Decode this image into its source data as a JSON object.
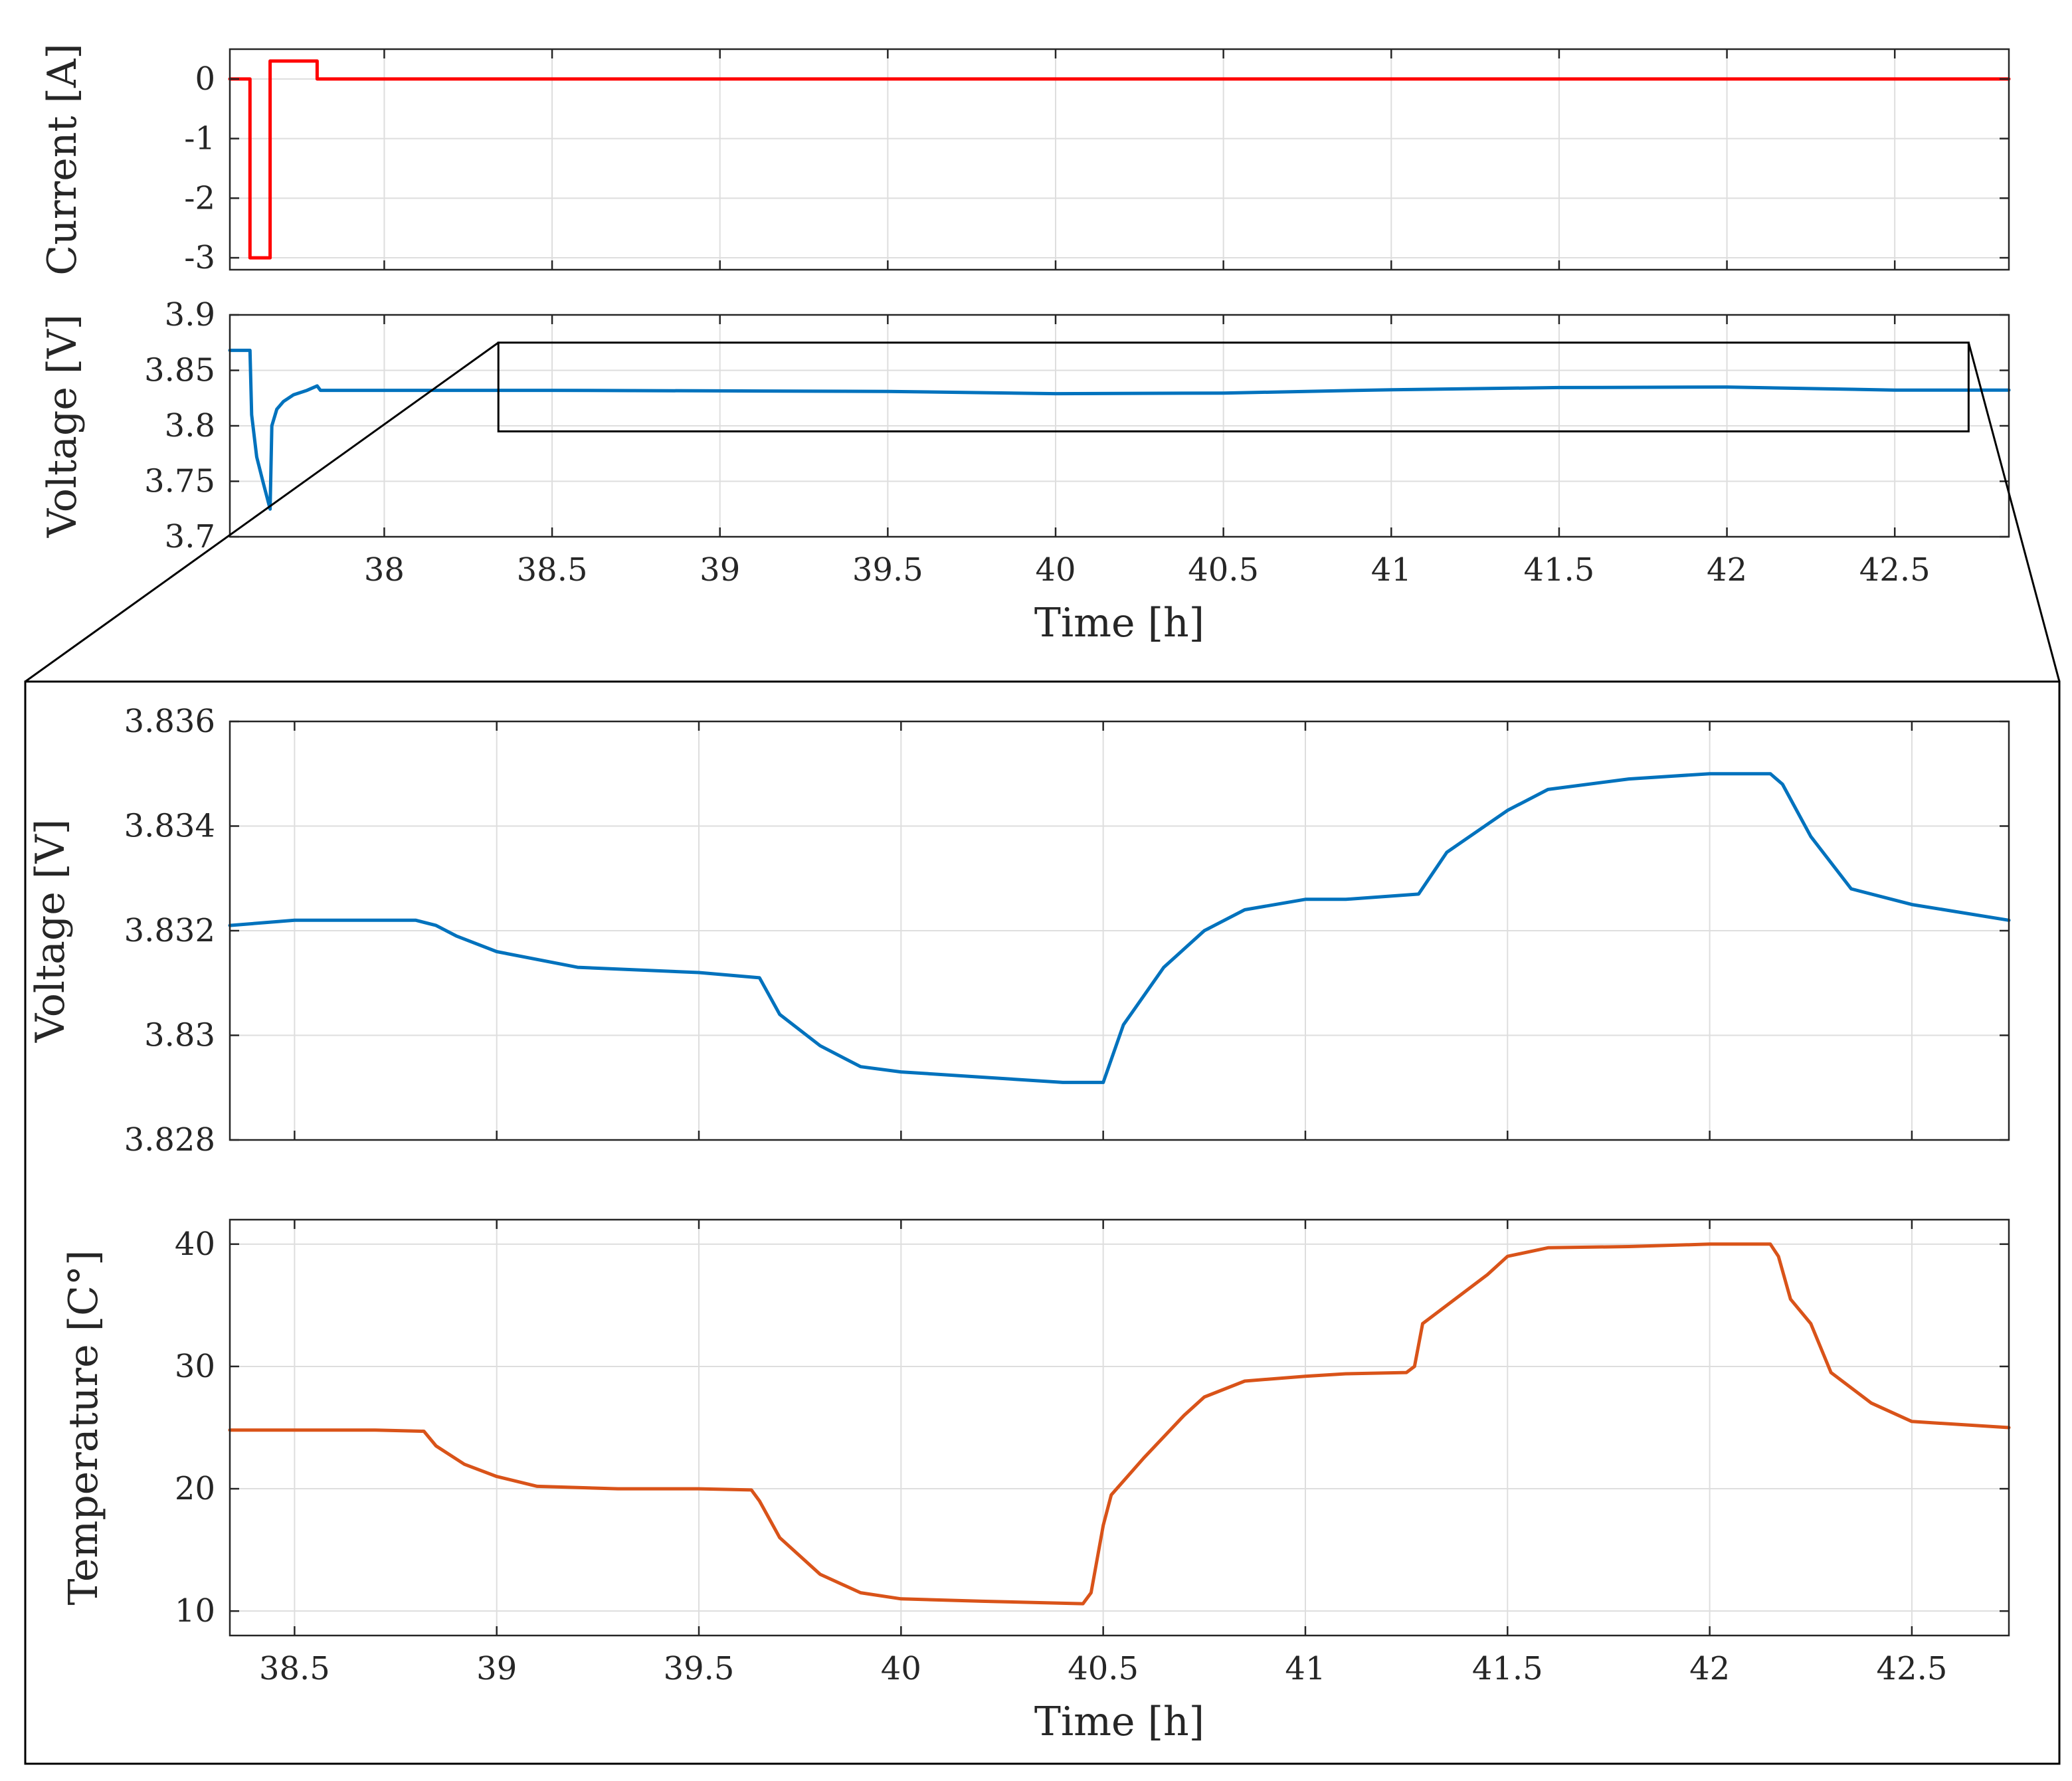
{
  "chart_data": [
    {
      "id": "current",
      "type": "line",
      "ylabel": "Current [A]",
      "xlabel": "",
      "xlim": [
        37.54,
        42.84
      ],
      "ylim": [
        -3.2,
        0.5
      ],
      "xticks": [
        38,
        38.5,
        39,
        39.5,
        40,
        40.5,
        41,
        41.5,
        42,
        42.5
      ],
      "xtick_labels": [],
      "yticks": [
        0,
        -1,
        -2,
        -3
      ],
      "ytick_labels": [
        "0",
        "-1",
        "-2",
        "-3"
      ],
      "grid": true,
      "series": [
        {
          "color": "#ff0000",
          "x": [
            37.54,
            37.6,
            37.6,
            37.66,
            37.66,
            37.8,
            37.8,
            42.84
          ],
          "y": [
            0,
            0,
            -3,
            -3,
            0.3,
            0.3,
            0,
            0
          ]
        }
      ]
    },
    {
      "id": "voltage_full",
      "type": "line",
      "ylabel": "Voltage [V]",
      "xlabel": "Time [h]",
      "xlim": [
        37.54,
        42.84
      ],
      "ylim": [
        3.7,
        3.9
      ],
      "xticks": [
        38,
        38.5,
        39,
        39.5,
        40,
        40.5,
        41,
        41.5,
        42,
        42.5
      ],
      "xtick_labels": [
        "38",
        "38.5",
        "39",
        "39.5",
        "40",
        "40.5",
        "41",
        "41.5",
        "42",
        "42.5"
      ],
      "yticks": [
        3.9,
        3.85,
        3.8,
        3.75,
        3.7
      ],
      "ytick_labels": [
        "3.9",
        "3.85",
        "3.8",
        "3.75",
        "3.7"
      ],
      "grid": true,
      "zoom_box": {
        "x": [
          38.34,
          42.72
        ],
        "y": [
          3.795,
          3.875
        ]
      },
      "series": [
        {
          "color": "#0072bd",
          "x": [
            37.54,
            37.6,
            37.605,
            37.62,
            37.64,
            37.66,
            37.665,
            37.68,
            37.7,
            37.73,
            37.77,
            37.8,
            37.81,
            38.0,
            38.5,
            39.0,
            39.5,
            40.0,
            40.5,
            41.0,
            41.5,
            42.0,
            42.5,
            42.84
          ],
          "y": [
            3.868,
            3.868,
            3.81,
            3.772,
            3.748,
            3.725,
            3.8,
            3.815,
            3.822,
            3.828,
            3.832,
            3.836,
            3.832,
            3.832,
            3.832,
            3.8315,
            3.831,
            3.829,
            3.8295,
            3.8325,
            3.8345,
            3.835,
            3.8322,
            3.8322
          ]
        }
      ]
    },
    {
      "id": "voltage_zoom",
      "type": "line",
      "ylabel": "Voltage [V]",
      "xlabel": "",
      "xlim": [
        38.34,
        42.74
      ],
      "ylim": [
        3.828,
        3.836
      ],
      "xticks": [
        38.5,
        39,
        39.5,
        40,
        40.5,
        41,
        41.5,
        42,
        42.5
      ],
      "xtick_labels": [],
      "yticks": [
        3.836,
        3.834,
        3.832,
        3.83,
        3.828
      ],
      "ytick_labels": [
        "3.836",
        "3.834",
        "3.832",
        "3.83",
        "3.828"
      ],
      "grid": true,
      "series": [
        {
          "color": "#0072bd",
          "x": [
            38.34,
            38.5,
            38.65,
            38.8,
            38.85,
            38.9,
            39.0,
            39.2,
            39.5,
            39.65,
            39.7,
            39.8,
            39.9,
            40.0,
            40.2,
            40.4,
            40.5,
            40.55,
            40.65,
            40.75,
            40.85,
            41.0,
            41.1,
            41.28,
            41.35,
            41.5,
            41.6,
            41.8,
            42.0,
            42.15,
            42.18,
            42.25,
            42.35,
            42.5,
            42.74
          ],
          "y": [
            3.8321,
            3.8322,
            3.8322,
            3.8322,
            3.8321,
            3.8319,
            3.8316,
            3.8313,
            3.8312,
            3.8311,
            3.8304,
            3.8298,
            3.8294,
            3.8293,
            3.8292,
            3.8291,
            3.8291,
            3.8302,
            3.8313,
            3.832,
            3.8324,
            3.8326,
            3.8326,
            3.8327,
            3.8335,
            3.8343,
            3.8347,
            3.8349,
            3.835,
            3.835,
            3.8348,
            3.8338,
            3.8328,
            3.8325,
            3.8322
          ]
        }
      ]
    },
    {
      "id": "temperature_zoom",
      "type": "line",
      "ylabel": "Temperature [C°]",
      "xlabel": "Time [h]",
      "xlim": [
        38.34,
        42.74
      ],
      "ylim": [
        8,
        42
      ],
      "xticks": [
        38.5,
        39,
        39.5,
        40,
        40.5,
        41,
        41.5,
        42,
        42.5
      ],
      "xtick_labels": [
        "38.5",
        "39",
        "39.5",
        "40",
        "40.5",
        "41",
        "41.5",
        "42",
        "42.5"
      ],
      "yticks": [
        40,
        30,
        20,
        10
      ],
      "ytick_labels": [
        "40",
        "30",
        "20",
        "10"
      ],
      "grid": true,
      "series": [
        {
          "color": "#d95319",
          "x": [
            38.34,
            38.5,
            38.7,
            38.82,
            38.85,
            38.92,
            39.0,
            39.1,
            39.3,
            39.5,
            39.63,
            39.65,
            39.7,
            39.8,
            39.9,
            40.0,
            40.2,
            40.45,
            40.47,
            40.5,
            40.52,
            40.6,
            40.7,
            40.75,
            40.85,
            41.0,
            41.1,
            41.25,
            41.27,
            41.29,
            41.35,
            41.45,
            41.5,
            41.6,
            41.8,
            42.0,
            42.15,
            42.17,
            42.2,
            42.25,
            42.3,
            42.4,
            42.5,
            42.74
          ],
          "y": [
            24.8,
            24.8,
            24.8,
            24.7,
            23.5,
            22.0,
            21.0,
            20.2,
            20.0,
            20.0,
            19.9,
            19.0,
            16.0,
            13.0,
            11.5,
            11.0,
            10.8,
            10.6,
            11.5,
            17.0,
            19.5,
            22.5,
            26.0,
            27.5,
            28.8,
            29.2,
            29.4,
            29.5,
            30.0,
            33.5,
            35.0,
            37.5,
            39.0,
            39.7,
            39.8,
            40.0,
            40.0,
            39.0,
            35.5,
            33.5,
            29.5,
            27.0,
            25.5,
            25.0
          ]
        }
      ]
    }
  ]
}
